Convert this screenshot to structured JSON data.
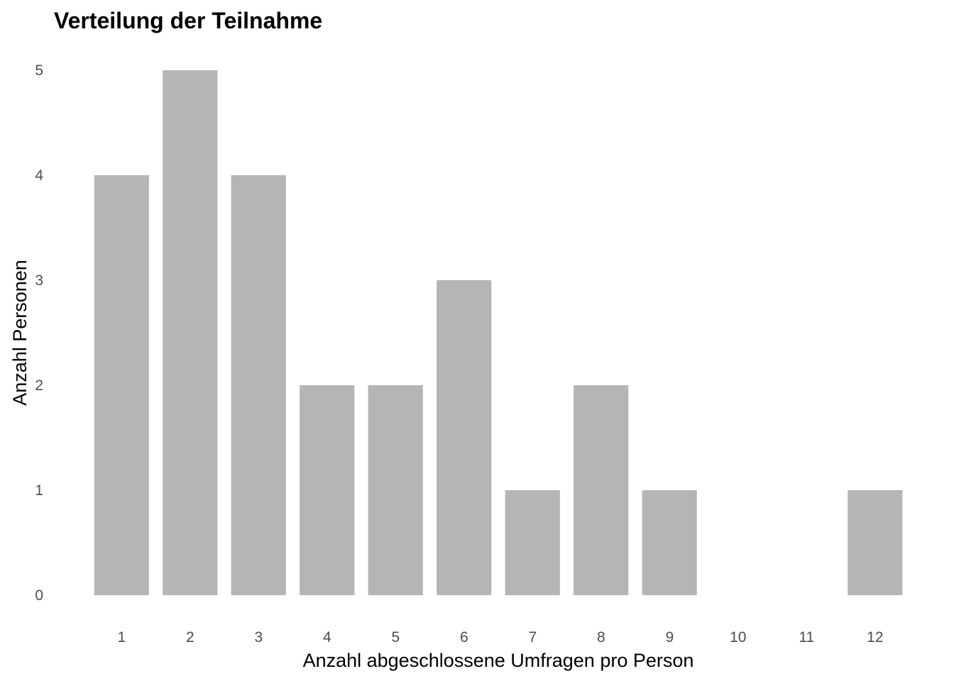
{
  "chart_data": {
    "type": "bar",
    "title": "Verteilung der Teilnahme",
    "xlabel": "Anzahl abgeschlossene Umfragen pro Person",
    "ylabel": "Anzahl Personen",
    "categories": [
      "1",
      "2",
      "3",
      "4",
      "5",
      "6",
      "7",
      "8",
      "9",
      "10",
      "11",
      "12"
    ],
    "values": [
      4,
      5,
      4,
      2,
      2,
      3,
      1,
      2,
      1,
      0,
      0,
      1
    ],
    "y_ticks": [
      "0",
      "1",
      "2",
      "3",
      "4",
      "5"
    ],
    "ylim": [
      0,
      5
    ],
    "grid": false,
    "legend": "none",
    "colors": {
      "bar": "#b5b5b5",
      "tick_text": "#4d4d4d",
      "text": "#000000",
      "background": "#ffffff"
    }
  }
}
